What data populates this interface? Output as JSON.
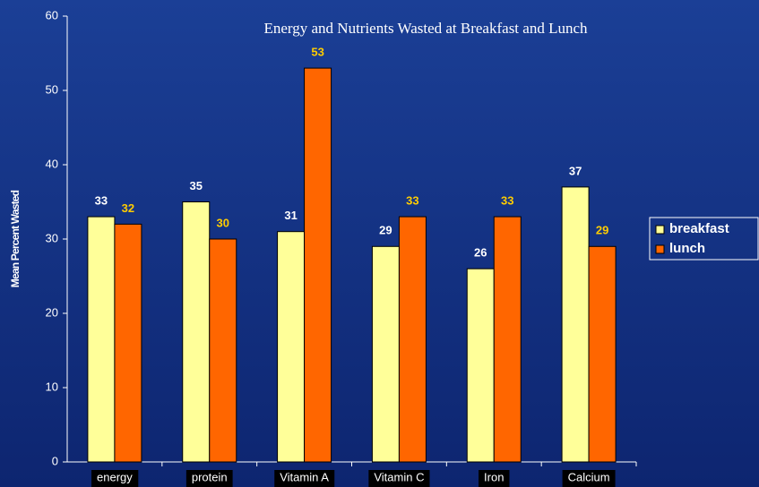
{
  "chart_data": {
    "type": "bar",
    "title": "Energy and Nutrients Wasted at Breakfast and Lunch",
    "y_label": "Mean Percent Wasted",
    "categories": [
      "energy",
      "protein",
      "Vitamin A",
      "Vitamin C",
      "Iron",
      "Calcium"
    ],
    "series": [
      {
        "name": "breakfast",
        "color": "#ffff99",
        "label_color": "#ffffff",
        "values": [
          33,
          35,
          31,
          29,
          26,
          37
        ]
      },
      {
        "name": "lunch",
        "color": "#ff6600",
        "label_color": "#ffcc00",
        "values": [
          32,
          30,
          53,
          33,
          33,
          29
        ]
      }
    ],
    "ylim": [
      0,
      60
    ],
    "yticks": [
      0,
      10,
      20,
      30,
      40,
      50,
      60
    ],
    "legend": "right"
  }
}
